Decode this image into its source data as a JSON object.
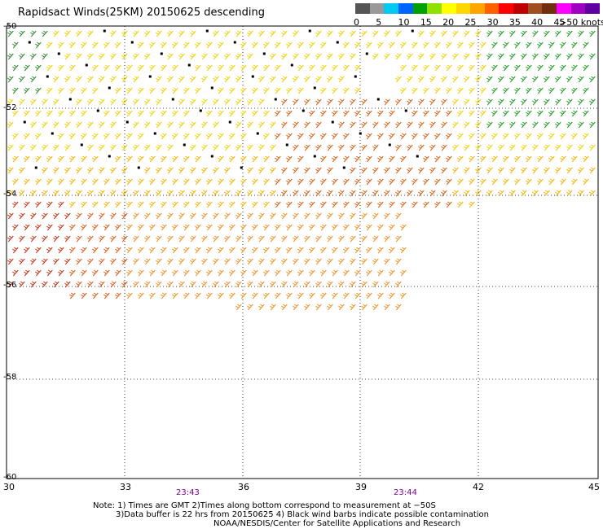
{
  "title": "Rapidsact Winds(25KM) 20150625 descending",
  "legend": {
    "labels": [
      "0",
      "5",
      "10",
      "15",
      "20",
      "25",
      "30",
      "35",
      "40",
      "45",
      ">50 knots"
    ],
    "colors": [
      "#555555",
      "#999999",
      "#00c8f0",
      "#0064ff",
      "#00a000",
      "#90e000",
      "#ffff00",
      "#ffd700",
      "#ffa500",
      "#ff6000",
      "#ff0000",
      "#c00000",
      "#a05020",
      "#703010",
      "#ff00ff",
      "#a000c0",
      "#6000a0"
    ]
  },
  "axes": {
    "lat_labels": [
      "-50",
      "-52",
      "-54",
      "-56",
      "-58",
      "-60"
    ],
    "lon_labels": [
      "30",
      "33",
      "36",
      "39",
      "42",
      "45"
    ]
  },
  "times": [
    "23:43",
    "23:44"
  ],
  "notes": [
    "Note: 1) Times are GMT 2)Times along bottom correspond to measurement at −50S",
    "3)Data buffer is 22 hrs from 20150625 4) Black wind barbs indicate possible contamination",
    "NOAA/NESDIS/Center for Satellite Applications and Research"
  ]
}
